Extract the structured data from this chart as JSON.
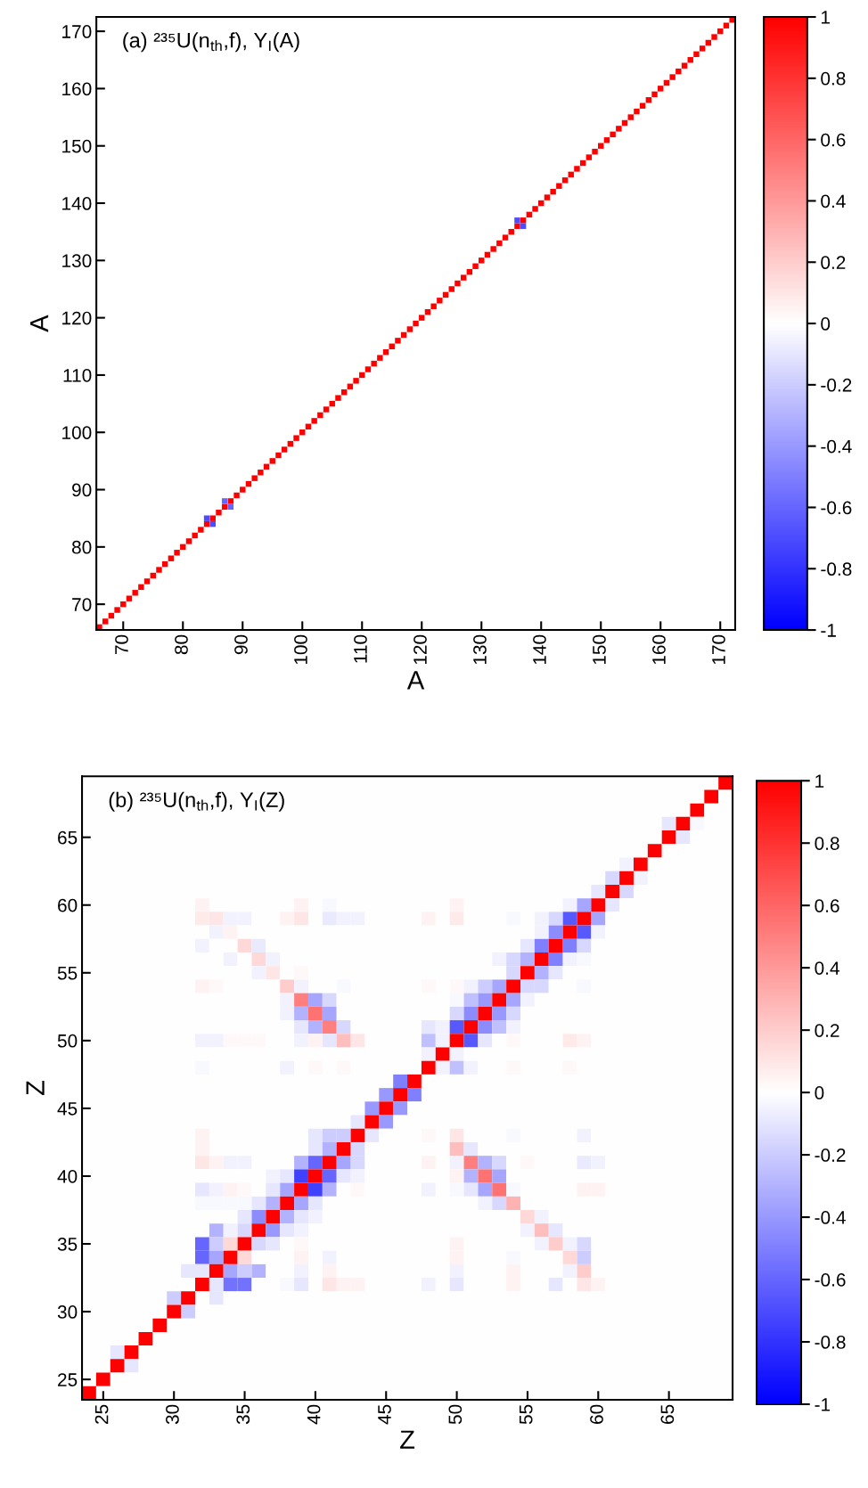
{
  "chart_data": [
    {
      "type": "scatter",
      "title": "(a) ²³⁵U(n$_{th}$,f), Y$_{I}$(A)",
      "xlabel": "A",
      "ylabel": "A",
      "marker": "square",
      "xlim": [
        65.5,
        172.5
      ],
      "ylim": [
        65.5,
        172.5
      ],
      "xticks": [
        70,
        80,
        90,
        100,
        110,
        120,
        130,
        140,
        150,
        160,
        170
      ],
      "yticks": [
        70,
        80,
        90,
        100,
        110,
        120,
        130,
        140,
        150,
        160,
        170
      ],
      "clim": [
        -1,
        1
      ],
      "cticks": [
        -1,
        -0.8,
        -0.6,
        -0.4,
        -0.2,
        0,
        0.2,
        0.4,
        0.6,
        0.8,
        1
      ],
      "x": [
        66,
        67,
        68,
        69,
        70,
        71,
        72,
        73,
        74,
        75,
        76,
        77,
        78,
        79,
        80,
        81,
        82,
        83,
        84,
        85,
        86,
        87,
        88,
        89,
        90,
        91,
        92,
        93,
        94,
        95,
        96,
        97,
        98,
        99,
        100,
        101,
        102,
        103,
        104,
        105,
        106,
        107,
        108,
        109,
        110,
        111,
        112,
        113,
        114,
        115,
        116,
        117,
        118,
        119,
        120,
        121,
        122,
        123,
        124,
        125,
        126,
        127,
        128,
        129,
        130,
        131,
        132,
        133,
        134,
        135,
        136,
        137,
        138,
        139,
        140,
        141,
        142,
        143,
        144,
        145,
        146,
        147,
        148,
        149,
        150,
        151,
        152,
        153,
        154,
        155,
        156,
        157,
        158,
        159,
        160,
        161,
        162,
        163,
        164,
        165,
        166,
        167,
        168,
        169,
        170,
        171,
        172,
        84,
        85,
        87,
        88,
        136,
        137
      ],
      "values": [
        66,
        67,
        68,
        69,
        70,
        71,
        72,
        73,
        74,
        75,
        76,
        77,
        78,
        79,
        80,
        81,
        82,
        83,
        84,
        85,
        86,
        87,
        88,
        89,
        90,
        91,
        92,
        93,
        94,
        95,
        96,
        97,
        98,
        99,
        100,
        101,
        102,
        103,
        104,
        105,
        106,
        107,
        108,
        109,
        110,
        111,
        112,
        113,
        114,
        115,
        116,
        117,
        118,
        119,
        120,
        121,
        122,
        123,
        124,
        125,
        126,
        127,
        128,
        129,
        130,
        131,
        132,
        133,
        134,
        135,
        136,
        137,
        138,
        139,
        140,
        141,
        142,
        143,
        144,
        145,
        146,
        147,
        148,
        149,
        150,
        151,
        152,
        153,
        154,
        155,
        156,
        157,
        158,
        159,
        160,
        161,
        162,
        163,
        164,
        165,
        166,
        167,
        168,
        169,
        170,
        171,
        172,
        85,
        84,
        88,
        87,
        137,
        136
      ],
      "cvalues": [
        1,
        1,
        1,
        1,
        1,
        1,
        1,
        1,
        1,
        1,
        1,
        1,
        1,
        1,
        1,
        1,
        1,
        1,
        1,
        1,
        1,
        1,
        1,
        1,
        1,
        1,
        1,
        1,
        1,
        1,
        1,
        1,
        1,
        1,
        1,
        1,
        1,
        1,
        1,
        1,
        1,
        1,
        1,
        1,
        1,
        1,
        1,
        1,
        1,
        1,
        1,
        1,
        1,
        1,
        1,
        1,
        1,
        1,
        1,
        1,
        1,
        1,
        1,
        1,
        1,
        1,
        1,
        1,
        1,
        1,
        1,
        1,
        1,
        1,
        1,
        1,
        1,
        1,
        1,
        1,
        1,
        1,
        1,
        1,
        1,
        1,
        1,
        1,
        1,
        1,
        1,
        1,
        1,
        1,
        1,
        1,
        1,
        1,
        1,
        1,
        1,
        1,
        1,
        1,
        1,
        1,
        1,
        -0.7,
        -0.7,
        -0.6,
        -0.6,
        -0.7,
        -0.7
      ]
    },
    {
      "type": "heatmap",
      "title": "(b) ²³⁵U(n$_{th}$,f), Y$_{I}$(Z)",
      "xlabel": "Z",
      "ylabel": "Z",
      "categories": [
        null,
        "25",
        null,
        null,
        null,
        null,
        "30",
        null,
        null,
        null,
        null,
        "35",
        null,
        null,
        null,
        null,
        "40",
        null,
        null,
        null,
        null,
        "45",
        null,
        null,
        null,
        null,
        "50",
        null,
        null,
        null,
        null,
        "55",
        null,
        null,
        null,
        null,
        "60",
        null,
        null,
        null,
        null,
        "65",
        null,
        null,
        null,
        null
      ],
      "y_categories": [
        null,
        null,
        null,
        null,
        "65",
        null,
        null,
        null,
        null,
        "60",
        null,
        null,
        null,
        null,
        "55",
        null,
        null,
        null,
        null,
        "50",
        null,
        null,
        null,
        null,
        "45",
        null,
        null,
        null,
        null,
        "40",
        null,
        null,
        null,
        null,
        "35",
        null,
        null,
        null,
        null,
        "30",
        null,
        null,
        null,
        null,
        "25",
        null
      ],
      "clim": [
        -1,
        1
      ],
      "cticks": [
        -1,
        -0.8,
        -0.6,
        -0.4,
        -0.2,
        0,
        0.2,
        0.4,
        0.6,
        0.8,
        1
      ],
      "cells": [
        [
          0,
          0,
          0,
          0,
          0,
          0,
          0,
          0,
          0,
          0,
          0,
          0,
          0,
          0,
          0,
          0,
          0,
          0,
          0,
          0,
          0,
          0,
          0,
          0,
          0,
          0,
          0,
          0,
          0,
          0,
          0,
          0,
          0,
          0,
          0,
          0,
          0,
          0,
          0,
          0,
          0,
          0,
          0,
          0,
          0,
          1
        ],
        [
          0,
          0,
          0,
          0,
          0,
          0,
          0,
          0,
          0,
          0,
          0,
          0,
          0,
          0,
          0,
          0,
          0,
          0,
          0,
          0,
          0,
          0,
          0,
          0,
          0,
          0,
          0,
          0,
          0,
          0,
          0,
          0,
          0,
          0,
          0,
          0,
          0,
          0,
          0,
          0,
          0,
          0,
          0,
          0,
          1,
          0
        ],
        [
          0,
          0,
          0,
          0,
          0,
          0,
          0,
          0,
          0,
          0,
          0,
          0,
          0,
          0,
          0,
          0,
          0,
          0,
          0,
          0,
          0,
          0,
          0,
          0,
          0,
          0,
          0,
          0,
          0,
          0,
          0,
          0,
          0,
          0,
          0,
          0,
          0,
          0,
          0,
          0,
          0,
          0,
          0,
          1,
          0,
          0
        ],
        [
          0,
          0,
          0,
          0,
          0,
          0,
          0,
          0,
          0,
          0,
          0,
          0,
          0,
          0,
          0,
          0,
          0,
          0,
          0,
          0,
          0,
          0,
          0,
          0,
          0,
          0,
          0,
          0,
          0,
          0,
          0,
          0,
          0,
          0,
          0,
          0,
          0,
          0,
          0,
          0,
          0,
          -0.1,
          1,
          -0.03,
          0,
          0
        ],
        [
          0,
          0,
          0,
          0,
          0,
          0,
          0,
          0,
          0,
          0,
          0,
          0,
          0,
          0,
          0,
          0,
          0,
          0,
          0,
          0,
          0,
          0,
          0,
          0,
          0,
          0,
          0,
          0,
          0,
          0,
          0,
          0,
          0,
          0,
          0,
          0,
          0,
          0,
          0,
          0,
          0,
          1,
          -0.1,
          0,
          0,
          0
        ],
        [
          0,
          0,
          0,
          0,
          0,
          0,
          0,
          0,
          0,
          0,
          0,
          0,
          0,
          0,
          0,
          0,
          0,
          0,
          0,
          0,
          0,
          0,
          0,
          0,
          0,
          0,
          0,
          0,
          0,
          0,
          0,
          0,
          0,
          0,
          0,
          0,
          0,
          0,
          0,
          0,
          1,
          0,
          0,
          0,
          0,
          0
        ],
        [
          0,
          0,
          0,
          0,
          0,
          0,
          0,
          0,
          0,
          0,
          0,
          0,
          0,
          0,
          0,
          0,
          0,
          0,
          0,
          0,
          0,
          0,
          0,
          0,
          0,
          0,
          0,
          0,
          0,
          0,
          0,
          0,
          0,
          0,
          0,
          0,
          0,
          0,
          -0.05,
          1,
          0,
          0,
          0,
          0,
          0,
          0
        ],
        [
          0,
          0,
          0,
          0,
          0,
          0,
          0,
          0,
          0,
          0,
          0,
          0,
          0,
          0,
          0,
          0,
          0,
          0,
          0,
          0,
          0,
          0,
          0,
          0,
          0,
          0,
          0,
          0,
          0,
          0,
          0,
          0,
          0,
          0,
          0,
          0,
          0,
          -0.15,
          1,
          -0.05,
          0,
          0,
          0,
          0,
          0,
          0
        ],
        [
          0,
          0,
          0,
          0,
          0,
          0,
          0,
          0,
          0,
          0,
          0,
          0,
          0,
          0,
          0,
          0,
          0,
          0,
          0,
          0,
          0,
          0,
          0,
          0,
          0,
          0,
          0,
          0,
          0,
          0,
          0,
          0,
          0,
          0,
          0,
          0,
          -0.1,
          1,
          -0.15,
          0,
          0,
          0,
          0,
          0,
          0,
          0
        ],
        [
          0,
          0,
          0,
          0,
          0,
          0,
          0,
          0,
          0.05,
          0,
          0,
          0,
          0,
          0,
          0,
          0.05,
          0,
          -0.03,
          0,
          0,
          0,
          0,
          0,
          0,
          0,
          0,
          0.05,
          0,
          0,
          0,
          0,
          0,
          0,
          0,
          -0.05,
          -0.35,
          1,
          -0.1,
          0,
          0,
          0,
          0,
          0,
          0,
          0,
          0
        ],
        [
          0,
          0,
          0,
          0,
          0,
          0,
          0,
          0,
          0.08,
          0.1,
          -0.05,
          -0.05,
          0,
          0,
          0.05,
          0.1,
          0,
          -0.08,
          -0.05,
          -0.05,
          0,
          0,
          0,
          0,
          0.05,
          0,
          0.08,
          0,
          0,
          0,
          -0.03,
          0,
          -0.05,
          -0.15,
          -0.65,
          1,
          -0.35,
          0,
          0,
          0,
          0,
          0,
          0,
          0,
          0,
          0
        ],
        [
          0,
          0,
          0,
          0,
          0,
          0,
          0,
          0,
          0,
          -0.05,
          0.05,
          0,
          0,
          0,
          0,
          0,
          0,
          0,
          0,
          0,
          0,
          0,
          0,
          0,
          0,
          0,
          0,
          0,
          0,
          0,
          0,
          0,
          -0.05,
          -0.45,
          1,
          -0.65,
          -0.05,
          0,
          0,
          0,
          0,
          0,
          0,
          0,
          0,
          0
        ],
        [
          0,
          0,
          0,
          0,
          0,
          0,
          0,
          0,
          -0.05,
          0,
          0,
          0.15,
          -0.08,
          0,
          0,
          0,
          0,
          0,
          0,
          0,
          0,
          0,
          0,
          0,
          0,
          0,
          0,
          0,
          0,
          0,
          0,
          -0.1,
          -0.5,
          1,
          -0.5,
          -0.15,
          0,
          0,
          0,
          0,
          0,
          0,
          0,
          0,
          0,
          0
        ],
        [
          0,
          0,
          0,
          0,
          0,
          0,
          0,
          0,
          0,
          0,
          -0.05,
          0,
          0.15,
          -0.05,
          0,
          0,
          0,
          0,
          0,
          0,
          0,
          0,
          0,
          0,
          0,
          0,
          0,
          0,
          0,
          -0.05,
          -0.15,
          -0.3,
          1,
          -0.5,
          -0.05,
          -0.03,
          0,
          0,
          0,
          0,
          0,
          0,
          0,
          0,
          0,
          0
        ],
        [
          0,
          0,
          0,
          0,
          0,
          0,
          0,
          0,
          0,
          0,
          0,
          0,
          -0.05,
          0.1,
          0,
          0.03,
          0,
          0,
          0,
          0,
          0,
          0,
          0,
          0,
          0,
          0,
          0,
          0,
          0,
          0,
          -0.15,
          1,
          -0.3,
          -0.1,
          0,
          0,
          0,
          0,
          0,
          0,
          0,
          0,
          0,
          0,
          0,
          0
        ],
        [
          0,
          0,
          0,
          0,
          0,
          0,
          0,
          0,
          0.05,
          0.03,
          0,
          0,
          0,
          0,
          0.2,
          -0.05,
          0,
          0,
          -0.03,
          0,
          0,
          0,
          0,
          0,
          0.03,
          0,
          0.03,
          -0.05,
          -0.2,
          -0.35,
          1,
          -0.15,
          -0.15,
          0,
          0,
          -0.03,
          0,
          0,
          0,
          0,
          0,
          0,
          0,
          0,
          0,
          0
        ],
        [
          0,
          0,
          0,
          0,
          0,
          0,
          0,
          0,
          0,
          0,
          0,
          0,
          0,
          0,
          -0.05,
          0.5,
          -0.35,
          -0.15,
          0,
          0,
          0,
          0,
          0,
          0,
          0,
          0,
          -0.03,
          -0.25,
          -0.4,
          1,
          -0.35,
          -0.05,
          0,
          0,
          0,
          0,
          0,
          0,
          0,
          0,
          0,
          0,
          0,
          0,
          0,
          0
        ],
        [
          0,
          0,
          0,
          0,
          0,
          0,
          0,
          0,
          0,
          0,
          0,
          0,
          0,
          0,
          -0.05,
          -0.3,
          0.55,
          -0.35,
          0,
          0,
          0,
          0,
          0,
          0,
          0,
          0,
          -0.15,
          -0.45,
          1,
          -0.4,
          -0.15,
          0,
          0,
          0,
          0,
          0,
          0,
          0,
          0,
          0,
          0,
          0,
          0,
          0,
          0,
          0
        ],
        [
          0,
          0,
          0,
          0,
          0,
          0,
          0,
          0,
          0,
          0,
          0,
          0,
          0,
          0,
          0,
          -0.1,
          -0.3,
          0.5,
          -0.15,
          0,
          0,
          0,
          0,
          0,
          -0.1,
          -0.05,
          -0.65,
          1,
          -0.45,
          -0.25,
          -0.05,
          0,
          0,
          0,
          0,
          0,
          0,
          0,
          0,
          0,
          0,
          0,
          0,
          0,
          0,
          0
        ],
        [
          0,
          0,
          0,
          0,
          0,
          0,
          0,
          0,
          -0.05,
          -0.05,
          0.03,
          0.03,
          0.03,
          0,
          0,
          -0.05,
          0.05,
          -0.1,
          0.25,
          0.1,
          0,
          0,
          0,
          0,
          -0.25,
          -0.05,
          1,
          -0.65,
          -0.1,
          0,
          0.03,
          0,
          0,
          0,
          0.08,
          0.05,
          0,
          0,
          0,
          0,
          0,
          0,
          0,
          0,
          0,
          0
        ],
        [
          0,
          0,
          0,
          0,
          0,
          0,
          0,
          0,
          0,
          0,
          0,
          0,
          0,
          0,
          0,
          0,
          0,
          0,
          0,
          0,
          0,
          0,
          0,
          0,
          -0.05,
          1,
          -0.05,
          0,
          0,
          0,
          0,
          0,
          0,
          0,
          0,
          0,
          0,
          0,
          0,
          0,
          0,
          0,
          0,
          0,
          0,
          0
        ],
        [
          0,
          0,
          0,
          0,
          0,
          0,
          0,
          0,
          -0.03,
          0,
          0,
          0,
          0,
          0,
          -0.05,
          0,
          0.03,
          0,
          0.03,
          0,
          0,
          0,
          0,
          0,
          1,
          -0.05,
          -0.25,
          -0.05,
          0,
          0,
          0.03,
          0,
          0,
          0,
          0.03,
          0,
          0,
          0,
          0,
          0,
          0,
          0,
          0,
          0,
          0,
          0
        ],
        [
          0,
          0,
          0,
          0,
          0,
          0,
          0,
          0,
          0,
          0,
          0,
          0,
          0,
          0,
          0,
          0,
          0,
          0,
          0,
          0,
          0,
          0,
          -0.5,
          1,
          0,
          0,
          0,
          0,
          0,
          0,
          0,
          0,
          0,
          0,
          0,
          0,
          0,
          0,
          0,
          0,
          0,
          0,
          0,
          0,
          0,
          0
        ],
        [
          0,
          0,
          0,
          0,
          0,
          0,
          0,
          0,
          0,
          0,
          0,
          0,
          0,
          0,
          0,
          0,
          0,
          0,
          0,
          0,
          0,
          -0.4,
          1,
          -0.5,
          0,
          0,
          0,
          0,
          0,
          0,
          0,
          0,
          0,
          0,
          0,
          0,
          0,
          0,
          0,
          0,
          0,
          0,
          0,
          0,
          0,
          0
        ],
        [
          0,
          0,
          0,
          0,
          0,
          0,
          0,
          0,
          0,
          0,
          0,
          0,
          0,
          0,
          0,
          0,
          0,
          0,
          0,
          0,
          -0.4,
          1,
          -0.4,
          0,
          0,
          0,
          0,
          0,
          0,
          0,
          0,
          0,
          0,
          0,
          0,
          0,
          0,
          0,
          0,
          0,
          0,
          0,
          0,
          0,
          0,
          0
        ],
        [
          0,
          0,
          0,
          0,
          0,
          0,
          0,
          0,
          0,
          0,
          0,
          0,
          0,
          0,
          0,
          0,
          0,
          0,
          0,
          -0.1,
          1,
          -0.4,
          0,
          0,
          0,
          0,
          0,
          0,
          0,
          0,
          0,
          0,
          0,
          0,
          0,
          0,
          0,
          0,
          0,
          0,
          0,
          0,
          0,
          0,
          0,
          0
        ],
        [
          0,
          0,
          0,
          0,
          0,
          0,
          0,
          0,
          0.05,
          0,
          0,
          0,
          0,
          0,
          0,
          0,
          -0.1,
          -0.2,
          -0.2,
          1,
          -0.1,
          0,
          0,
          0,
          0.03,
          0,
          0.1,
          0,
          0,
          0,
          -0.03,
          0,
          0,
          0,
          0,
          -0.05,
          0,
          0,
          0,
          0,
          0,
          0,
          0,
          0,
          0,
          0
        ],
        [
          0,
          0,
          0,
          0,
          0,
          0,
          0,
          0,
          0.05,
          0,
          0,
          0,
          0,
          0,
          0,
          0,
          -0.1,
          -0.3,
          1,
          -0.15,
          0,
          0,
          0,
          0,
          0,
          0,
          0.25,
          -0.1,
          0,
          0,
          0,
          0,
          0,
          0,
          0,
          0,
          0,
          0,
          0,
          0,
          0,
          0,
          0,
          0,
          0,
          0
        ],
        [
          0,
          0,
          0,
          0,
          0,
          0,
          0,
          0,
          0.1,
          0.05,
          -0.05,
          -0.05,
          0,
          0,
          0,
          -0.3,
          -0.6,
          1,
          -0.35,
          -0.15,
          0,
          0,
          0,
          0,
          0.05,
          0,
          -0.05,
          0.5,
          -0.3,
          -0.15,
          0,
          0.03,
          0,
          0,
          0,
          -0.08,
          -0.05,
          0,
          0,
          0,
          0,
          0,
          0,
          0,
          0,
          0
        ],
        [
          0,
          0,
          0,
          0,
          0,
          0,
          0,
          0,
          0,
          0,
          0,
          0,
          0,
          -0.05,
          -0.1,
          -0.75,
          1,
          -0.6,
          -0.1,
          -0.05,
          0,
          0,
          0,
          0,
          0,
          0,
          0.05,
          -0.3,
          0.55,
          -0.35,
          0,
          0,
          0,
          0,
          0,
          0,
          0,
          0,
          0,
          0,
          0,
          0,
          0,
          0,
          0,
          0
        ],
        [
          0,
          0,
          0,
          0,
          0,
          0,
          0,
          0,
          -0.1,
          -0.05,
          0.05,
          0.03,
          0,
          -0.1,
          -0.35,
          1,
          -0.75,
          -0.3,
          0,
          0.03,
          0,
          0,
          0,
          0,
          -0.05,
          0,
          -0.03,
          -0.1,
          -0.35,
          0.55,
          -0.03,
          0,
          0,
          0,
          0,
          0.05,
          0.05,
          0,
          0,
          0,
          0,
          0,
          0,
          0,
          0,
          0
        ],
        [
          0,
          0,
          0,
          0,
          0,
          0,
          0,
          0,
          -0.03,
          -0.03,
          -0.03,
          -0.03,
          -0.1,
          -0.3,
          1,
          -0.35,
          -0.1,
          0,
          0,
          0,
          0,
          0,
          0,
          0,
          0,
          0,
          0,
          0,
          -0.05,
          -0.15,
          0.3,
          0,
          0,
          0,
          0,
          0,
          0,
          0,
          0,
          0,
          0,
          0,
          0,
          0,
          0,
          0
        ],
        [
          0,
          0,
          0,
          0,
          0,
          0,
          0,
          0,
          0,
          0,
          0,
          -0.1,
          -0.45,
          1,
          -0.3,
          -0.1,
          -0.05,
          0,
          0,
          0,
          0,
          0,
          0,
          0,
          0,
          0,
          0,
          0,
          0,
          0,
          0,
          0.15,
          -0.05,
          0,
          0,
          0,
          0,
          0,
          0,
          0,
          0,
          0,
          0,
          0,
          0,
          0
        ],
        [
          0,
          0,
          0,
          0,
          0,
          0,
          0,
          0,
          0,
          -0.3,
          -0.05,
          -0.15,
          1,
          -0.4,
          -0.1,
          -0.05,
          0,
          0,
          0,
          0,
          0,
          0,
          0,
          0,
          0,
          0,
          0,
          0,
          0,
          0,
          0,
          -0.05,
          0.25,
          -0.1,
          0,
          0,
          0,
          0,
          0,
          0,
          0,
          0,
          0,
          0,
          0,
          0
        ],
        [
          0,
          0,
          0,
          0,
          0,
          0,
          0,
          0,
          -0.6,
          -0.2,
          0.15,
          1,
          -0.15,
          -0.1,
          0,
          0.03,
          0,
          0,
          0,
          0,
          0,
          0,
          0,
          0,
          0,
          0,
          0.05,
          0,
          0,
          0,
          0,
          0,
          -0.05,
          0.2,
          -0.05,
          -0.15,
          0,
          0,
          0,
          0,
          0,
          0,
          0,
          0,
          0,
          0
        ],
        [
          0,
          0,
          0,
          0,
          0,
          0,
          0,
          0,
          -0.6,
          -0.35,
          1,
          0.15,
          0,
          0,
          0,
          0.05,
          0,
          -0.05,
          0,
          0,
          0,
          0,
          0,
          0,
          0,
          0,
          0.05,
          0,
          0,
          0,
          -0.03,
          0,
          0,
          0,
          0.15,
          -0.2,
          0,
          0,
          0,
          0,
          0,
          0,
          0,
          0,
          0,
          0
        ],
        [
          0,
          0,
          0,
          0,
          0,
          0,
          0,
          -0.1,
          -0.1,
          1,
          -0.35,
          -0.2,
          -0.3,
          0,
          0,
          -0.05,
          0,
          0.05,
          0,
          0,
          0,
          0,
          0,
          0,
          0,
          0,
          -0.05,
          0,
          0,
          0,
          0.05,
          0,
          0,
          0,
          -0.05,
          0.2,
          0,
          0,
          0,
          0,
          0,
          0,
          0,
          0,
          0,
          0
        ],
        [
          0,
          0,
          0,
          0,
          0,
          0,
          0,
          0,
          1,
          -0.1,
          -0.55,
          -0.55,
          0,
          0,
          -0.03,
          -0.1,
          0,
          0.1,
          0.05,
          0.05,
          0,
          0,
          0,
          0,
          -0.05,
          0,
          -0.1,
          0,
          0,
          0,
          0.05,
          0,
          0,
          -0.1,
          0,
          0.1,
          0.05,
          0,
          0,
          0,
          0,
          0,
          0,
          0,
          0,
          0
        ],
        [
          0,
          0,
          0,
          0,
          0,
          0,
          -0.2,
          1,
          0,
          -0.1,
          0,
          0,
          0,
          0,
          0,
          0,
          0,
          0,
          0,
          0,
          0,
          0,
          0,
          0,
          0,
          0,
          0,
          0,
          0,
          0,
          0,
          0,
          0,
          0,
          0,
          0,
          0,
          0,
          0,
          0,
          0,
          0,
          0,
          0,
          0,
          0
        ],
        [
          0,
          0,
          0,
          0,
          0,
          0,
          1,
          -0.2,
          0,
          0,
          0,
          0,
          0,
          0,
          0,
          0,
          0,
          0,
          0,
          0,
          0,
          0,
          0,
          0,
          0,
          0,
          0,
          0,
          0,
          0,
          0,
          0,
          0,
          0,
          0,
          0,
          0,
          0,
          0,
          0,
          0,
          0,
          0,
          0,
          0,
          0
        ],
        [
          0,
          0,
          0,
          0,
          0,
          1,
          0,
          0,
          0,
          0,
          0,
          0,
          0,
          0,
          0,
          0,
          0,
          0,
          0,
          0,
          0,
          0,
          0,
          0,
          0,
          0,
          0,
          0,
          0,
          0,
          0,
          0,
          0,
          0,
          0,
          0,
          0,
          0,
          0,
          0,
          0,
          0,
          0,
          0,
          0,
          0
        ],
        [
          0,
          0,
          0,
          0,
          1,
          0,
          0,
          0,
          0,
          0,
          0,
          0,
          0,
          0,
          0,
          0,
          0,
          0,
          0,
          0,
          0,
          0,
          0,
          0,
          0,
          0,
          0,
          0,
          0,
          0,
          0,
          0,
          0,
          0,
          0,
          0,
          0,
          0,
          0,
          0,
          0,
          0,
          0,
          0,
          0,
          0
        ],
        [
          0,
          0,
          -0.1,
          1,
          0,
          0,
          0,
          0,
          0,
          0,
          0,
          0,
          0,
          0,
          0,
          0,
          0,
          0,
          0,
          0,
          0,
          0,
          0,
          0,
          0,
          0,
          0,
          0,
          0,
          0,
          0,
          0,
          0,
          0,
          0,
          0,
          0,
          0,
          0,
          0,
          0,
          0,
          0,
          0,
          0,
          0
        ],
        [
          0,
          0,
          1,
          -0.1,
          0,
          0,
          0,
          0,
          0,
          0,
          0,
          0,
          0,
          0,
          0,
          0,
          0,
          0,
          0,
          0,
          0,
          0,
          0,
          0,
          0,
          0,
          0,
          0,
          0,
          0,
          0,
          0,
          0,
          0,
          0,
          0,
          0,
          0,
          0,
          0,
          0,
          0,
          0,
          0,
          0,
          0
        ],
        [
          0,
          1,
          0,
          0,
          0,
          0,
          0,
          0,
          0,
          0,
          0,
          0,
          0,
          0,
          0,
          0,
          0,
          0,
          0,
          0,
          0,
          0,
          0,
          0,
          0,
          0,
          0,
          0,
          0,
          0,
          0,
          0,
          0,
          0,
          0,
          0,
          0,
          0,
          0,
          0,
          0,
          0,
          0,
          0,
          0,
          0
        ],
        [
          1,
          0,
          0,
          0,
          0,
          0,
          0,
          0,
          0,
          0,
          0,
          0,
          0,
          0,
          0,
          0,
          0,
          0,
          0,
          0,
          0,
          0,
          0,
          0,
          0,
          0,
          0,
          0,
          0,
          0,
          0,
          0,
          0,
          0,
          0,
          0,
          0,
          0,
          0,
          0,
          0,
          0,
          0,
          0,
          0,
          0
        ]
      ]
    }
  ]
}
